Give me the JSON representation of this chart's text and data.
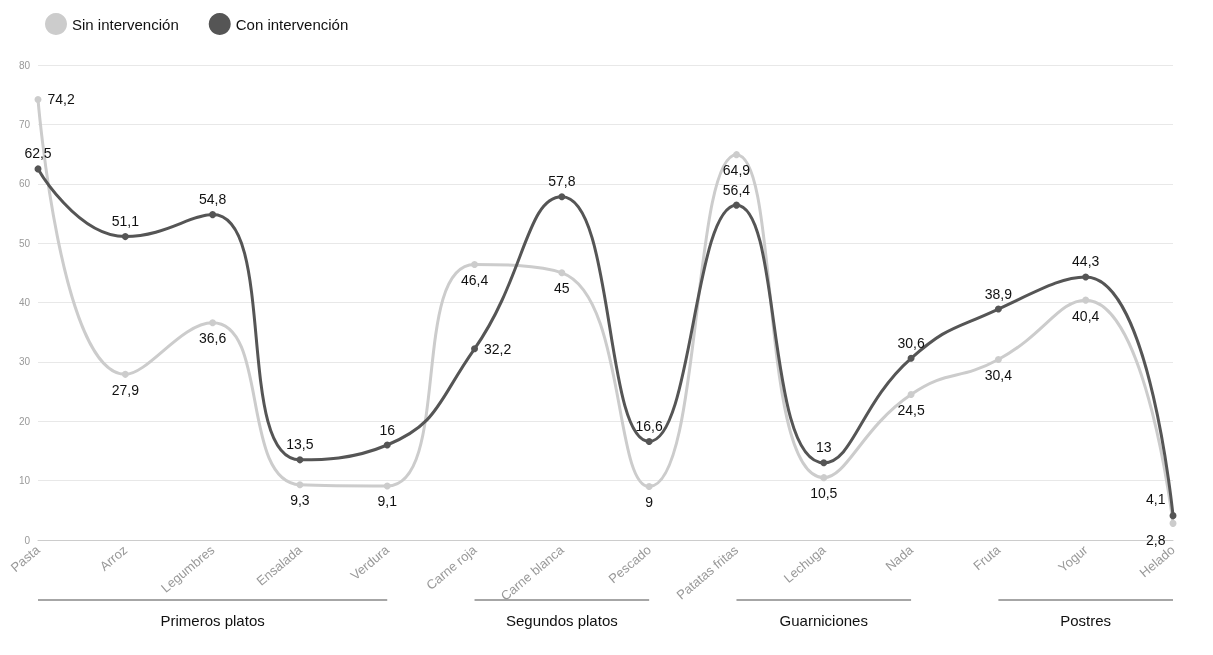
{
  "chart_data": {
    "type": "line",
    "categories": [
      "Pasta",
      "Arroz",
      "Legumbres",
      "Ensalada",
      "Verdura",
      "Carne roja",
      "Carne blanca",
      "Pescado",
      "Patatas fritas",
      "Lechuga",
      "Nada",
      "Fruta",
      "Yogur",
      "Helado"
    ],
    "series": [
      {
        "name": "Sin intervención",
        "color": "#cccccc",
        "values": [
          74.2,
          27.9,
          36.6,
          9.3,
          9.1,
          46.4,
          45,
          9,
          64.9,
          10.5,
          24.5,
          30.4,
          40.4,
          2.8
        ],
        "value_labels": [
          "74,2",
          "27,9",
          "36,6",
          "9,3",
          "9,1",
          "46,4",
          "45",
          "9",
          "64,9",
          "10,5",
          "24,5",
          "30,4",
          "40,4",
          "2,8"
        ]
      },
      {
        "name": "Con intervención",
        "color": "#555555",
        "values": [
          62.5,
          51.1,
          54.8,
          13.5,
          16,
          32.2,
          57.8,
          16.6,
          56.4,
          13,
          30.6,
          38.9,
          44.3,
          4.1
        ],
        "value_labels": [
          "62,5",
          "51,1",
          "54,8",
          "13,5",
          "16",
          "32,2",
          "57,8",
          "16,6",
          "56,4",
          "13",
          "30,6",
          "38,9",
          "44,3",
          "4,1"
        ]
      }
    ],
    "ylim": [
      0,
      80
    ],
    "yticks": [
      0,
      10,
      20,
      30,
      40,
      50,
      60,
      70,
      80
    ],
    "grid": "y",
    "legend": "top left",
    "marker": "circle",
    "line_style": "solid",
    "annotations": [
      "Primeros platos",
      "Segundos platos",
      "Guarniciones",
      "Postres"
    ]
  }
}
